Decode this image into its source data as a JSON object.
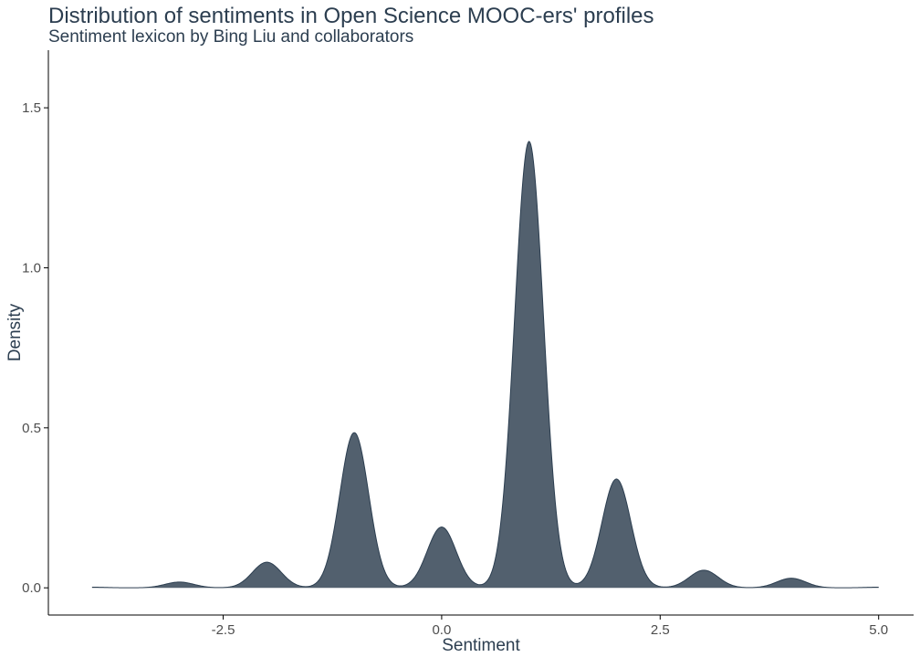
{
  "chart_data": {
    "type": "area",
    "title": "Distribution of sentiments in Open Science MOOC-ers' profiles",
    "subtitle": "Sentiment lexicon by Bing Liu and collaborators",
    "xlabel": "Sentiment",
    "ylabel": "Density",
    "xlim": [
      -4.5,
      5.4
    ],
    "ylim": [
      -0.085,
      1.68
    ],
    "x_ticks": [
      -2.5,
      0.0,
      2.5,
      5.0
    ],
    "x_tick_labels": [
      "-2.5",
      "0.0",
      "2.5",
      "5.0"
    ],
    "y_ticks": [
      0.0,
      0.5,
      1.0,
      1.5
    ],
    "y_tick_labels": [
      "0.0",
      "0.5",
      "1.0",
      "1.5"
    ],
    "grid": false,
    "fill_color": "#52606e",
    "line_color": "#2c3e50",
    "x_range": [
      -4,
      5
    ],
    "peaks": [
      {
        "x": -4,
        "y": 0.002
      },
      {
        "x": -3,
        "y": 0.018
      },
      {
        "x": -2,
        "y": 0.08
      },
      {
        "x": -1,
        "y": 0.485
      },
      {
        "x": 0,
        "y": 0.19
      },
      {
        "x": 1,
        "y": 1.395
      },
      {
        "x": 2,
        "y": 0.34
      },
      {
        "x": 3,
        "y": 0.055
      },
      {
        "x": 4,
        "y": 0.03
      },
      {
        "x": 5,
        "y": 0.002
      }
    ],
    "bandwidth": 0.165
  }
}
